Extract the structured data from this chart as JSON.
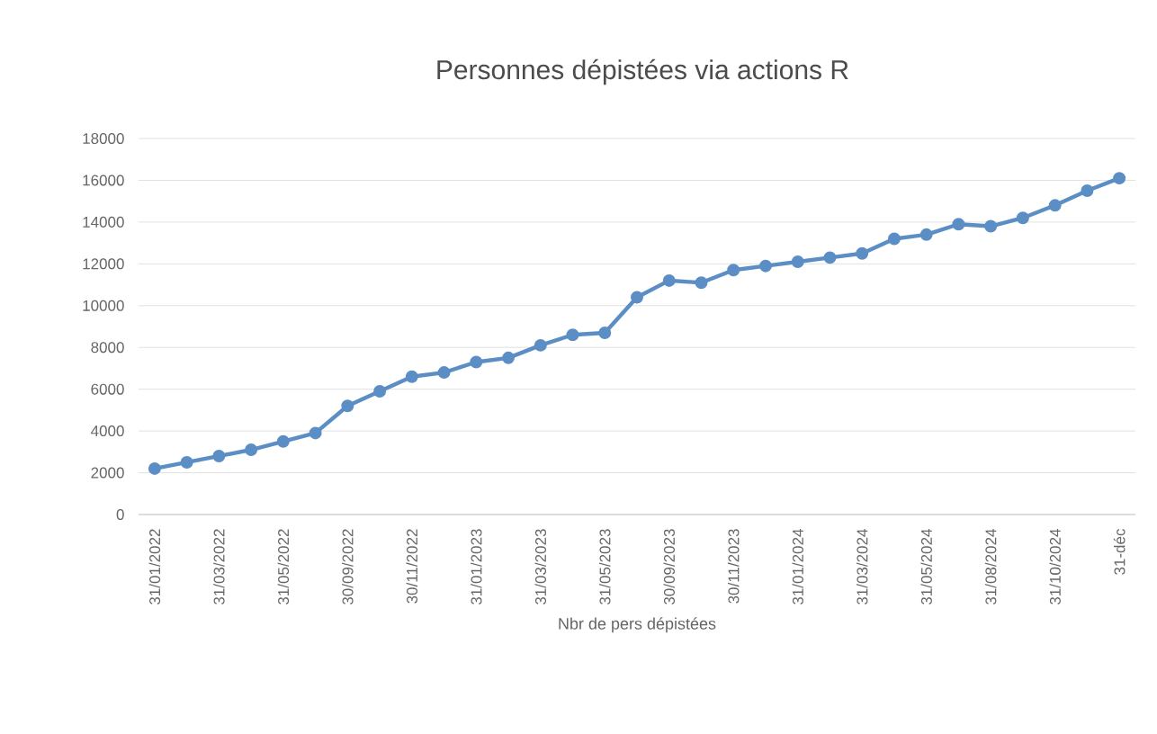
{
  "chart_data": {
    "type": "line",
    "title": "Personnes dépistées via actions R",
    "xlabel": "Nbr de pers dépistées",
    "categories": [
      "31/01/2022",
      null,
      "31/03/2022",
      null,
      "31/05/2022",
      null,
      "30/09/2022",
      null,
      "30/11/2022",
      null,
      "31/01/2023",
      null,
      "31/03/2023",
      null,
      "31/05/2023",
      null,
      "30/09/2023",
      null,
      "30/11/2023",
      null,
      "31/01/2024",
      null,
      "31/03/2024",
      null,
      "31/05/2024",
      null,
      "31/08/2024",
      null,
      "31/10/2024",
      null,
      "31-déc"
    ],
    "series": [
      {
        "color": "#5b8ec4",
        "values": [
          2200,
          2500,
          2800,
          3100,
          3500,
          3900,
          5200,
          5900,
          6600,
          6800,
          7300,
          7500,
          8100,
          8600,
          8700,
          10400,
          11200,
          11100,
          11700,
          11900,
          12100,
          12300,
          12500,
          13200,
          13400,
          13900,
          13800,
          14200,
          14800,
          15500,
          16100
        ]
      }
    ],
    "ylim": [
      0,
      18000
    ],
    "yticks": [
      0,
      2000,
      4000,
      6000,
      8000,
      10000,
      12000,
      14000,
      16000,
      18000
    ],
    "grid": "y",
    "marker": "circle",
    "line_style": "solid"
  }
}
